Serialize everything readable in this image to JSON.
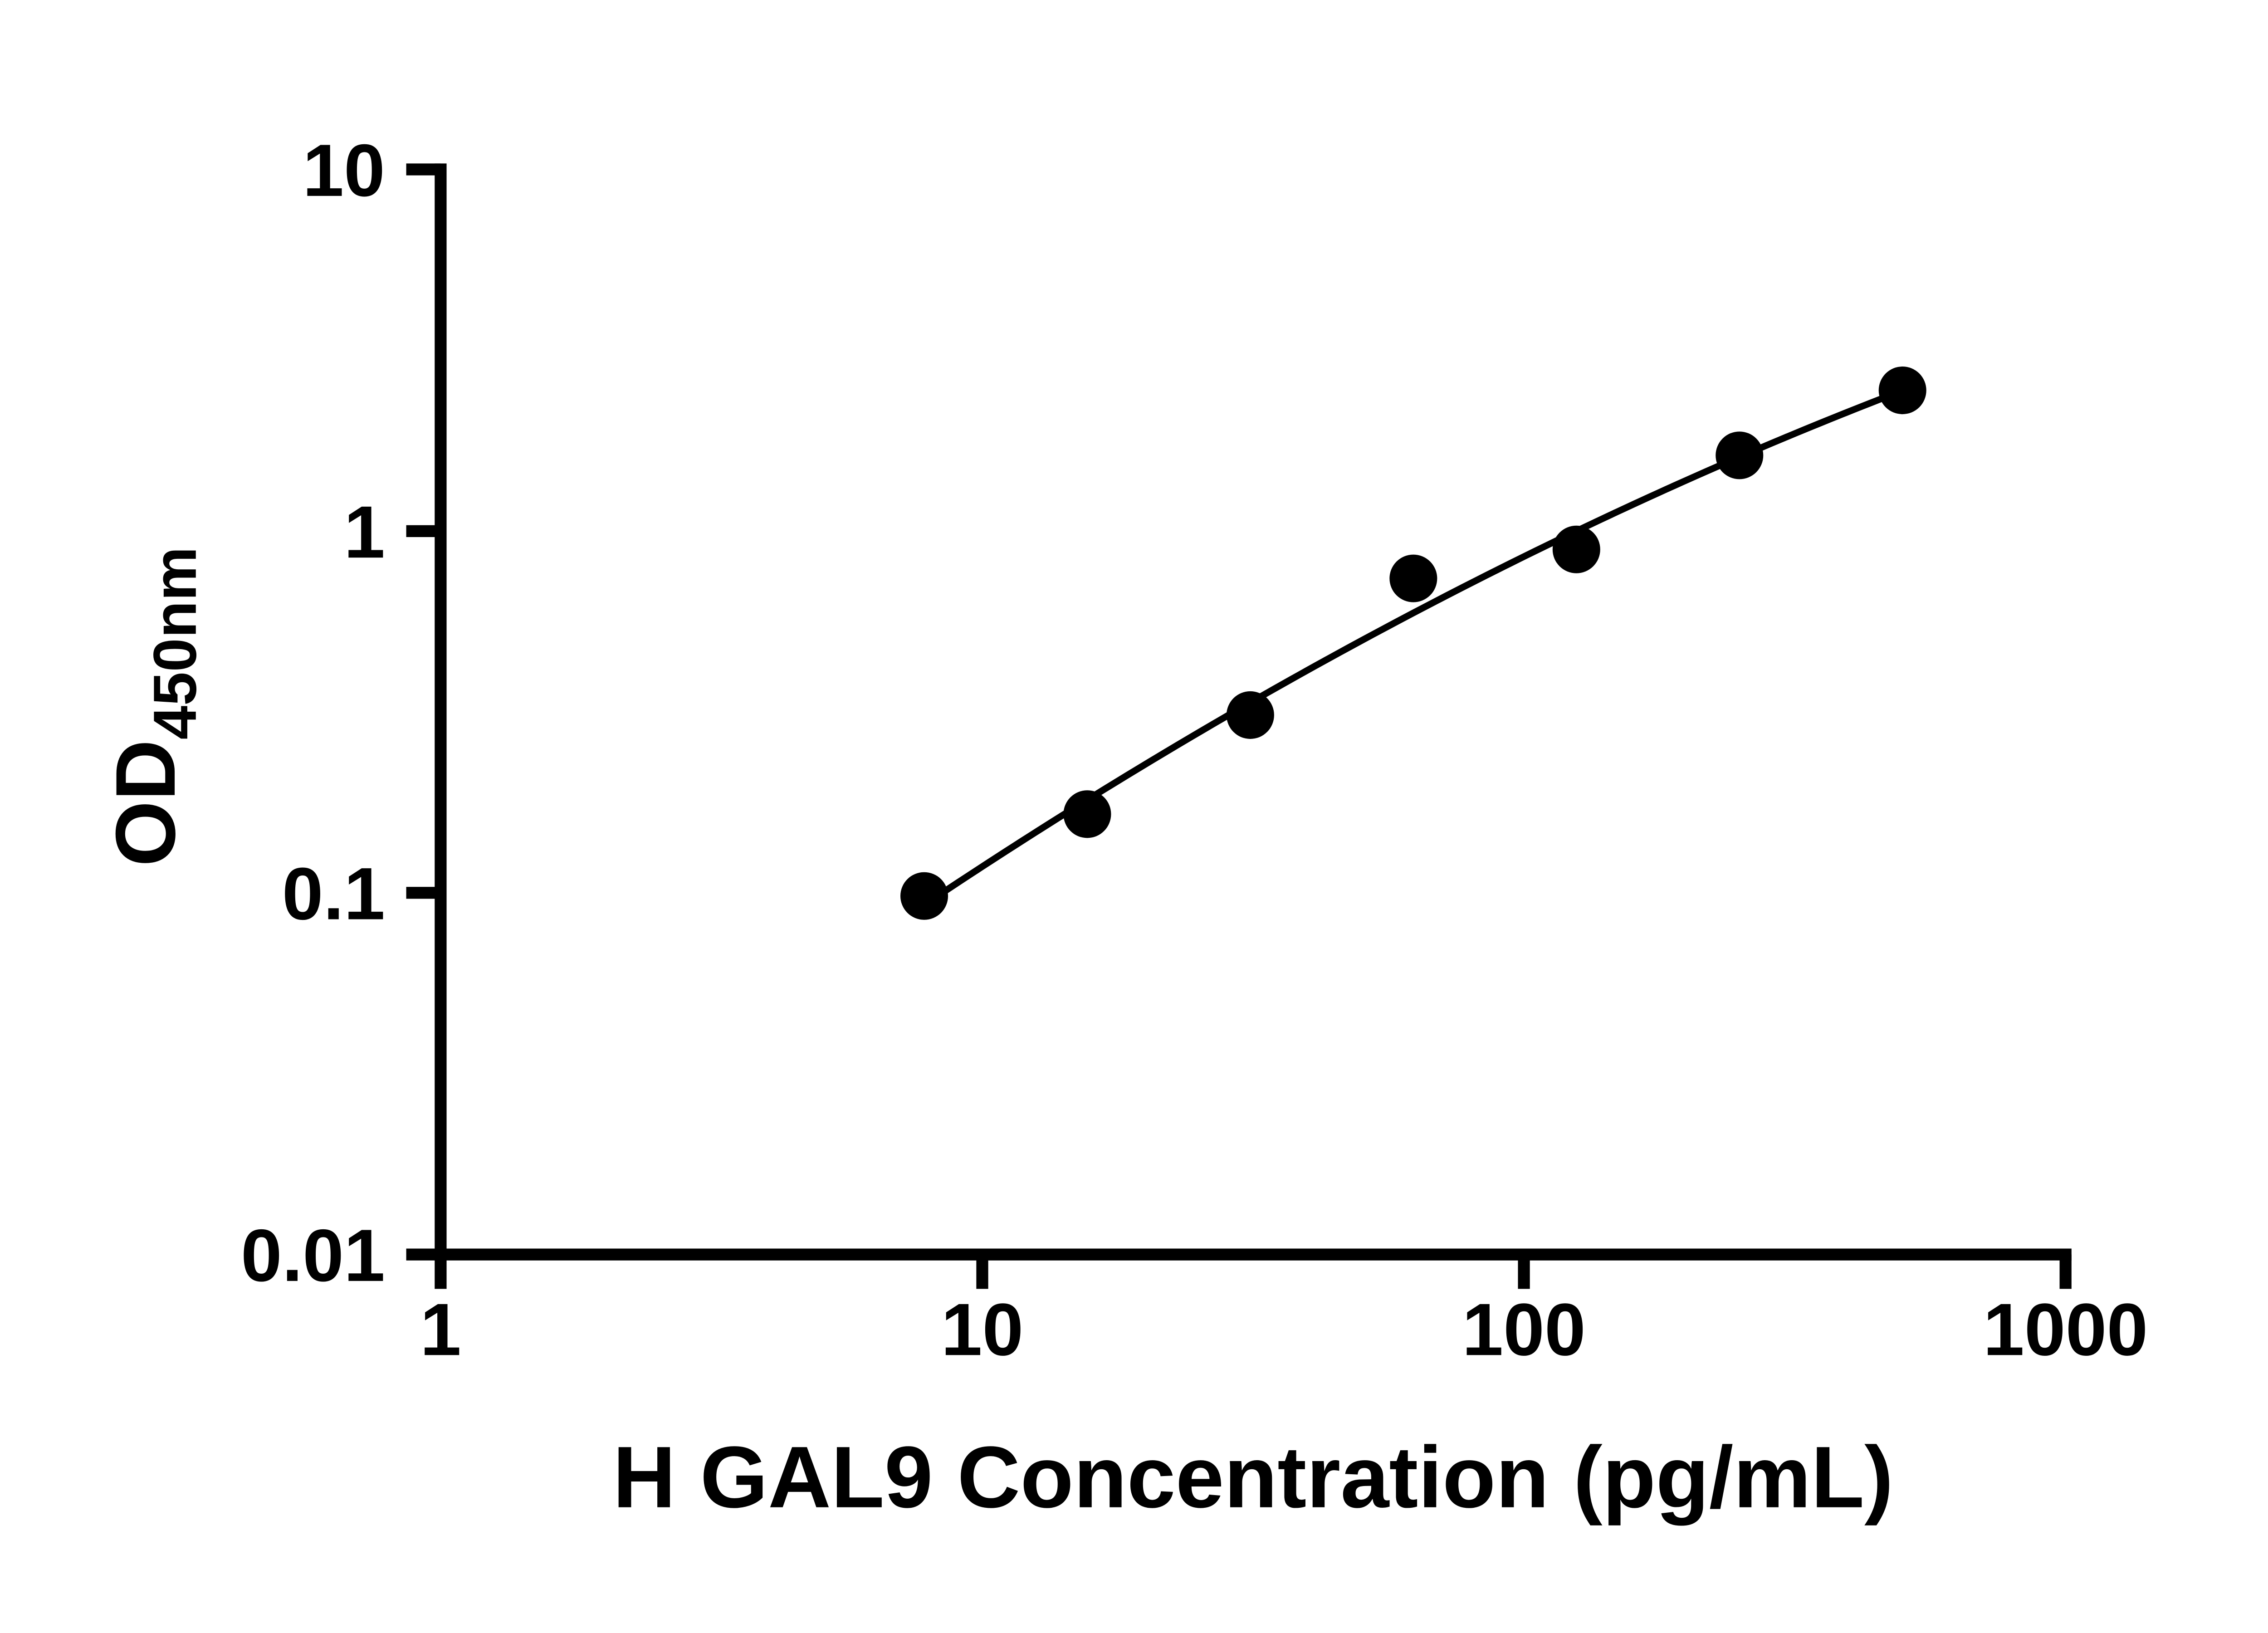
{
  "chart_data": {
    "type": "scatter",
    "title": "",
    "xlabel": "H GAL9 Concentration (pg/mL)",
    "ylabel_main": "OD",
    "ylabel_sub": "450nm",
    "x_scale": "log10",
    "y_scale": "log10",
    "xlim": [
      1,
      1000
    ],
    "ylim": [
      0.01,
      10
    ],
    "grid": false,
    "legend": false,
    "background": "#ffffff",
    "axis_color": "#000000",
    "x_ticks": [
      {
        "value": 1,
        "label": "1"
      },
      {
        "value": 10,
        "label": "10"
      },
      {
        "value": 100,
        "label": "100"
      },
      {
        "value": 1000,
        "label": "1000"
      }
    ],
    "y_ticks": [
      {
        "value": 0.01,
        "label": "0.01"
      },
      {
        "value": 0.1,
        "label": "0.1"
      },
      {
        "value": 1,
        "label": "1"
      },
      {
        "value": 10,
        "label": "10"
      }
    ],
    "series": [
      {
        "x": [
          7.813,
          15.625,
          31.25,
          62.5,
          125,
          250,
          500
        ],
        "y": [
          0.098,
          0.165,
          0.31,
          0.74,
          0.89,
          1.62,
          2.45
        ],
        "marker": "circle",
        "marker_color": "#000000",
        "fit_line": true,
        "line_color": "#000000"
      }
    ]
  }
}
